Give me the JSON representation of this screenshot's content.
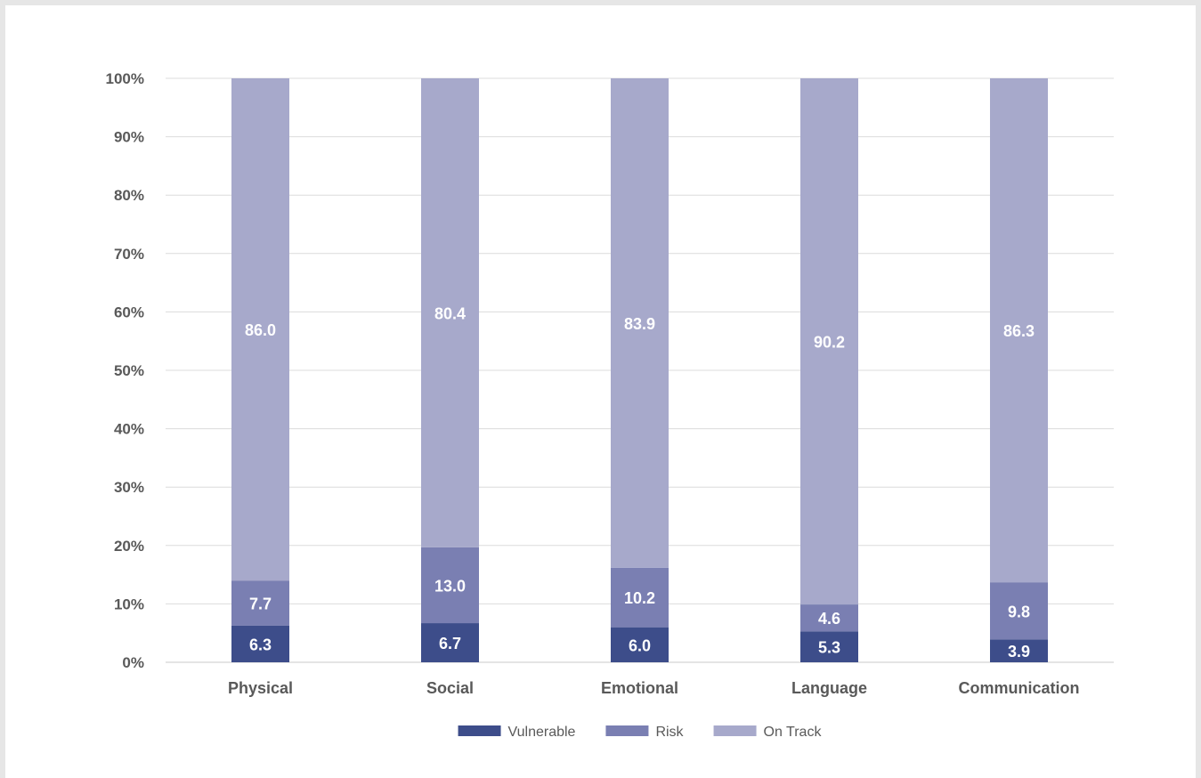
{
  "chart_data": {
    "type": "bar",
    "stacked": true,
    "categories": [
      "Physical",
      "Social",
      "Emotional",
      "Language",
      "Communication"
    ],
    "series": [
      {
        "name": "Vulnerable",
        "values": [
          6.3,
          6.7,
          6.0,
          5.3,
          3.9
        ],
        "color": "#3d4d8a"
      },
      {
        "name": "Risk",
        "values": [
          7.7,
          13.0,
          10.2,
          4.6,
          9.8
        ],
        "color": "#7a7fb2"
      },
      {
        "name": "On Track",
        "values": [
          86.0,
          80.4,
          83.9,
          90.2,
          86.3
        ],
        "color": "#a7a9cb"
      }
    ],
    "y_ticks": [
      "0%",
      "10%",
      "20%",
      "30%",
      "40%",
      "50%",
      "60%",
      "70%",
      "80%",
      "90%",
      "100%"
    ],
    "ylim": [
      0,
      100
    ],
    "grid": true,
    "legend": "bottom-center",
    "title": "",
    "xlabel": "",
    "ylabel": ""
  }
}
